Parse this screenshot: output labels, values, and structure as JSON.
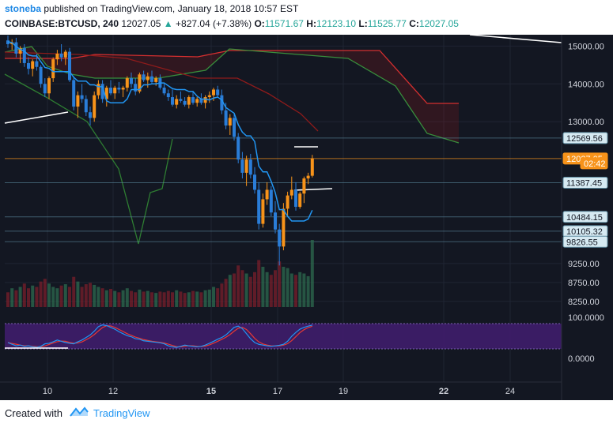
{
  "header": {
    "author": "stoneba",
    "published": "published on TradingView.com, January 18, 2018 10:57 EST",
    "symbol": "COINBASE:BTCUSD, 240",
    "last": "12027.05",
    "change": "+827.04 (+7.38%)",
    "o_label": "O:",
    "o_value": "11571.67",
    "h_label": "H:",
    "h_value": "12123.10",
    "l_label": "L:",
    "l_value": "11525.77",
    "c_label": "C:",
    "c_value": "12027.05"
  },
  "footer": {
    "created_with": "Created with",
    "brand": "TradingView"
  },
  "colors": {
    "background": "#131722",
    "bull": "#f7931a",
    "bear": "#2a7dd8",
    "cloud_red": "#b71c1c",
    "cloud_green": "#2e7d32",
    "tenkan": "#2196f3",
    "stoch_k": "#2196f3",
    "stoch_d": "#e53935",
    "stoch_band": "#3f1d6b"
  },
  "chart_data": {
    "type": "candlestick",
    "symbol": "COINBASE:BTCUSD",
    "interval": "240",
    "x_ticks": [
      "10",
      "12",
      "15",
      "17",
      "19",
      "22",
      "24"
    ],
    "y_ticks": [
      "15000.00",
      "14000.00",
      "13000.00",
      "9250.00",
      "8750.00",
      "8250.00"
    ],
    "y_range": [
      8100,
      15300
    ],
    "price_labels": [
      {
        "text": "12569.56",
        "value": 12569.56,
        "style": "outline"
      },
      {
        "text": "12027.05",
        "value": 12027.05,
        "style": "last"
      },
      {
        "text": "02:42",
        "value": 11900,
        "style": "timer"
      },
      {
        "text": "11387.45",
        "value": 11387.45,
        "style": "outline"
      },
      {
        "text": "10484.15",
        "value": 10484.15,
        "style": "outline"
      },
      {
        "text": "10105.32",
        "value": 10105.32,
        "style": "outline"
      },
      {
        "text": "9826.55",
        "value": 9826.55,
        "style": "outline"
      }
    ],
    "horizontal_lines": [
      12569.56,
      12027.05,
      11387.45,
      10484.15,
      10105.32,
      9826.55
    ],
    "candles": [
      {
        "o": 15150,
        "h": 15280,
        "l": 14950,
        "c": 15050
      },
      {
        "o": 15050,
        "h": 15180,
        "l": 14900,
        "c": 15100
      },
      {
        "o": 15100,
        "h": 15220,
        "l": 14700,
        "c": 14800
      },
      {
        "o": 14800,
        "h": 15000,
        "l": 14550,
        "c": 14950
      },
      {
        "o": 14950,
        "h": 15050,
        "l": 14450,
        "c": 14550
      },
      {
        "o": 14550,
        "h": 14700,
        "l": 14250,
        "c": 14400
      },
      {
        "o": 14400,
        "h": 14650,
        "l": 14200,
        "c": 14600
      },
      {
        "o": 14600,
        "h": 14800,
        "l": 14350,
        "c": 14450
      },
      {
        "o": 14450,
        "h": 14500,
        "l": 13900,
        "c": 14000
      },
      {
        "o": 14000,
        "h": 14150,
        "l": 13650,
        "c": 13750
      },
      {
        "o": 13750,
        "h": 14200,
        "l": 13600,
        "c": 14150
      },
      {
        "o": 14150,
        "h": 14700,
        "l": 14050,
        "c": 14650
      },
      {
        "o": 14650,
        "h": 14900,
        "l": 14500,
        "c": 14800
      },
      {
        "o": 14800,
        "h": 15050,
        "l": 14600,
        "c": 14700
      },
      {
        "o": 14700,
        "h": 14900,
        "l": 14500,
        "c": 14850
      },
      {
        "o": 14850,
        "h": 14950,
        "l": 14050,
        "c": 14100
      },
      {
        "o": 14100,
        "h": 14200,
        "l": 13300,
        "c": 13400
      },
      {
        "o": 13400,
        "h": 13800,
        "l": 13100,
        "c": 13700
      },
      {
        "o": 13700,
        "h": 14000,
        "l": 13500,
        "c": 13600
      },
      {
        "o": 13600,
        "h": 13700,
        "l": 13150,
        "c": 13250
      },
      {
        "o": 13250,
        "h": 13400,
        "l": 12900,
        "c": 13100
      },
      {
        "o": 13100,
        "h": 13800,
        "l": 13000,
        "c": 13700
      },
      {
        "o": 13700,
        "h": 14100,
        "l": 13600,
        "c": 14000
      },
      {
        "o": 14000,
        "h": 14100,
        "l": 13500,
        "c": 13600
      },
      {
        "o": 13600,
        "h": 13950,
        "l": 13400,
        "c": 13900
      },
      {
        "o": 13900,
        "h": 14100,
        "l": 13700,
        "c": 13750
      },
      {
        "o": 13750,
        "h": 13950,
        "l": 13600,
        "c": 13900
      },
      {
        "o": 13900,
        "h": 14050,
        "l": 13750,
        "c": 13850
      },
      {
        "o": 13850,
        "h": 13950,
        "l": 13650,
        "c": 13900
      },
      {
        "o": 13900,
        "h": 14200,
        "l": 13800,
        "c": 14150
      },
      {
        "o": 14150,
        "h": 14300,
        "l": 13900,
        "c": 14000
      },
      {
        "o": 14000,
        "h": 14150,
        "l": 13700,
        "c": 13800
      },
      {
        "o": 13800,
        "h": 14300,
        "l": 13750,
        "c": 14250
      },
      {
        "o": 14250,
        "h": 14350,
        "l": 14050,
        "c": 14100
      },
      {
        "o": 14100,
        "h": 14300,
        "l": 13900,
        "c": 14200
      },
      {
        "o": 14200,
        "h": 14350,
        "l": 14000,
        "c": 14050
      },
      {
        "o": 14050,
        "h": 14200,
        "l": 13950,
        "c": 14150
      },
      {
        "o": 14150,
        "h": 14250,
        "l": 13850,
        "c": 13900
      },
      {
        "o": 13900,
        "h": 14000,
        "l": 13700,
        "c": 13750
      },
      {
        "o": 13750,
        "h": 13850,
        "l": 13550,
        "c": 13650
      },
      {
        "o": 13650,
        "h": 13850,
        "l": 13400,
        "c": 13450
      },
      {
        "o": 13450,
        "h": 13700,
        "l": 13350,
        "c": 13600
      },
      {
        "o": 13600,
        "h": 13800,
        "l": 13500,
        "c": 13550
      },
      {
        "o": 13550,
        "h": 13650,
        "l": 13400,
        "c": 13450
      },
      {
        "o": 13450,
        "h": 13700,
        "l": 13350,
        "c": 13650
      },
      {
        "o": 13650,
        "h": 13800,
        "l": 13450,
        "c": 13500
      },
      {
        "o": 13500,
        "h": 13650,
        "l": 13400,
        "c": 13600
      },
      {
        "o": 13600,
        "h": 13750,
        "l": 13450,
        "c": 13500
      },
      {
        "o": 13500,
        "h": 13700,
        "l": 13350,
        "c": 13650
      },
      {
        "o": 13650,
        "h": 13800,
        "l": 13500,
        "c": 13700
      },
      {
        "o": 13700,
        "h": 13900,
        "l": 13550,
        "c": 13850
      },
      {
        "o": 13850,
        "h": 13950,
        "l": 13650,
        "c": 13700
      },
      {
        "o": 13700,
        "h": 13850,
        "l": 13200,
        "c": 13300
      },
      {
        "o": 13300,
        "h": 13500,
        "l": 12800,
        "c": 12900
      },
      {
        "o": 12900,
        "h": 13200,
        "l": 12650,
        "c": 13100
      },
      {
        "o": 13100,
        "h": 13200,
        "l": 12500,
        "c": 12600
      },
      {
        "o": 12600,
        "h": 12700,
        "l": 11900,
        "c": 12000
      },
      {
        "o": 12000,
        "h": 12200,
        "l": 11500,
        "c": 11650
      },
      {
        "o": 11650,
        "h": 12100,
        "l": 11300,
        "c": 12000
      },
      {
        "o": 12000,
        "h": 12150,
        "l": 11500,
        "c": 11600
      },
      {
        "o": 11600,
        "h": 11800,
        "l": 11100,
        "c": 11200
      },
      {
        "o": 11200,
        "h": 11400,
        "l": 10150,
        "c": 10300
      },
      {
        "o": 10300,
        "h": 11100,
        "l": 10200,
        "c": 10950
      },
      {
        "o": 10950,
        "h": 11400,
        "l": 10800,
        "c": 11200
      },
      {
        "o": 11200,
        "h": 11300,
        "l": 10500,
        "c": 10600
      },
      {
        "o": 10600,
        "h": 10900,
        "l": 10050,
        "c": 10150
      },
      {
        "o": 10150,
        "h": 10300,
        "l": 9200,
        "c": 9700
      },
      {
        "o": 9700,
        "h": 10850,
        "l": 9600,
        "c": 10700
      },
      {
        "o": 10700,
        "h": 11150,
        "l": 10500,
        "c": 11050
      },
      {
        "o": 11050,
        "h": 11550,
        "l": 10950,
        "c": 11200
      },
      {
        "o": 11200,
        "h": 11400,
        "l": 10650,
        "c": 10750
      },
      {
        "o": 10750,
        "h": 11150,
        "l": 10700,
        "c": 11100
      },
      {
        "o": 11100,
        "h": 11550,
        "l": 10850,
        "c": 11500
      },
      {
        "o": 11500,
        "h": 11650,
        "l": 11350,
        "c": 11571.67
      },
      {
        "o": 11571.67,
        "h": 12123.1,
        "l": 11525.77,
        "c": 12027.05
      }
    ],
    "volume_relative": [
      0.22,
      0.28,
      0.25,
      0.3,
      0.35,
      0.28,
      0.32,
      0.3,
      0.38,
      0.42,
      0.35,
      0.3,
      0.28,
      0.32,
      0.34,
      0.3,
      0.45,
      0.38,
      0.3,
      0.34,
      0.36,
      0.33,
      0.3,
      0.28,
      0.25,
      0.27,
      0.24,
      0.22,
      0.25,
      0.28,
      0.24,
      0.22,
      0.26,
      0.23,
      0.24,
      0.22,
      0.21,
      0.23,
      0.22,
      0.24,
      0.22,
      0.25,
      0.23,
      0.21,
      0.22,
      0.24,
      0.23,
      0.22,
      0.25,
      0.26,
      0.3,
      0.28,
      0.35,
      0.42,
      0.48,
      0.5,
      0.62,
      0.55,
      0.5,
      0.45,
      0.52,
      0.7,
      0.6,
      0.52,
      0.48,
      0.55,
      0.68,
      0.6,
      0.58,
      0.5,
      0.48,
      0.52,
      0.5,
      0.46,
      1.0
    ],
    "stoch_range": [
      0,
      100
    ],
    "stoch_ticks": [
      "100.0000",
      "0.0000"
    ],
    "stoch_k": [
      25,
      18,
      12,
      15,
      10,
      12,
      8,
      6,
      10,
      20,
      22,
      28,
      35,
      30,
      25,
      22,
      20,
      28,
      35,
      45,
      55,
      70,
      88,
      95,
      92,
      85,
      78,
      68,
      60,
      52,
      48,
      40,
      38,
      32,
      30,
      28,
      26,
      24,
      20,
      12,
      8,
      6,
      10,
      15,
      12,
      10,
      8,
      10,
      15,
      22,
      30,
      38,
      45,
      55,
      70,
      85,
      90,
      80,
      60,
      40,
      25,
      18,
      15,
      12,
      10,
      12,
      14,
      18,
      30,
      50,
      65,
      78,
      85,
      90,
      94
    ]
  }
}
